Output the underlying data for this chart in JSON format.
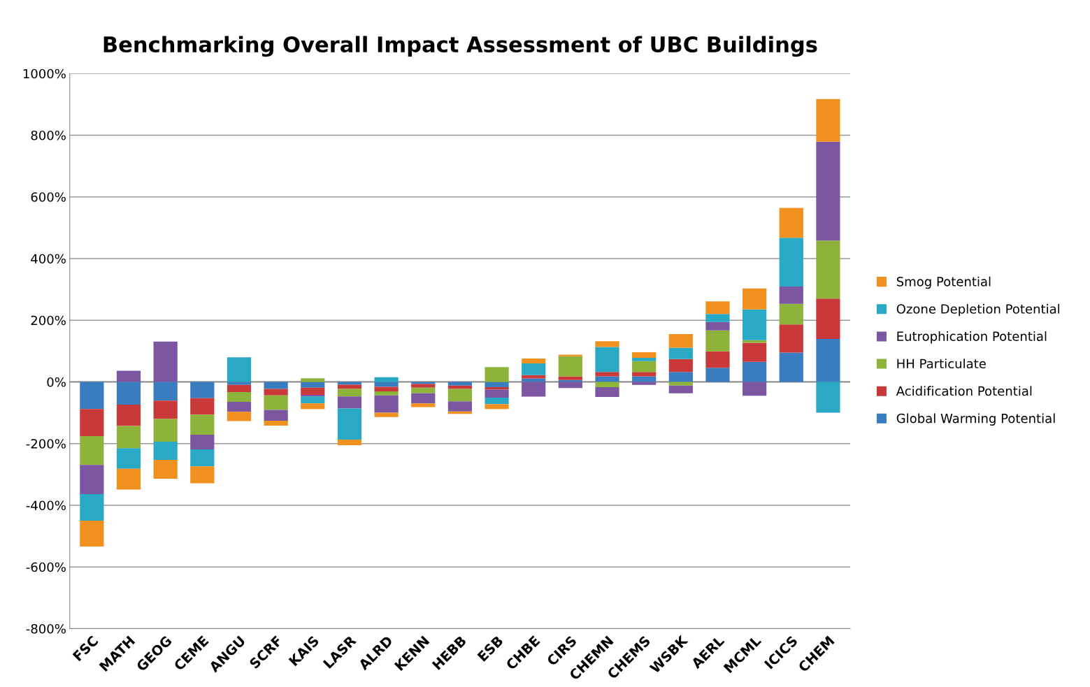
{
  "chart_data": {
    "type": "bar",
    "stacked": true,
    "title": "Benchmarking Overall Impact Assessment of UBC Buildings",
    "categories": [
      "FSC",
      "MATH",
      "GEOG",
      "CEME",
      "ANGU",
      "SCRF",
      "KAIS",
      "LASR",
      "ALRD",
      "KENN",
      "HEBB",
      "ESB",
      "CHBE",
      "CIRS",
      "CHEMN",
      "CHEMS",
      "WSBK",
      "AERL",
      "MCML",
      "ICICS",
      "CHEM"
    ],
    "series": [
      {
        "name": "Global Warming Potential",
        "color": "#3a7cc0",
        "values": [
          -88,
          -74,
          -61,
          -53,
          -10,
          -23,
          -19,
          -9,
          -16,
          -7,
          -12,
          -17,
          11,
          6,
          18,
          18,
          32,
          46,
          65,
          95,
          139
        ]
      },
      {
        "name": "Acidification Potential",
        "color": "#c9393a",
        "values": [
          -88,
          -69,
          -59,
          -53,
          -23,
          -21,
          -23,
          -14,
          -15,
          -12,
          -11,
          -8,
          11,
          12,
          14,
          14,
          42,
          53,
          62,
          91,
          131
        ]
      },
      {
        "name": "HH Particulate",
        "color": "#8db33b",
        "values": [
          -93,
          -72,
          -74,
          -65,
          -32,
          -47,
          12,
          -24,
          -13,
          -18,
          -40,
          48,
          0,
          65,
          -17,
          35,
          -12,
          68,
          8,
          67,
          188
        ]
      },
      {
        "name": "Eutrophication Potential",
        "color": "#7b57a2",
        "values": [
          -95,
          36,
          131,
          -48,
          -32,
          -35,
          -5,
          -39,
          -56,
          -33,
          -33,
          -26,
          -48,
          -20,
          -32,
          -10,
          -25,
          27,
          -45,
          56,
          321
        ]
      },
      {
        "name": "Ozone Depletion Potential",
        "color": "#2aa9c6",
        "values": [
          -86,
          -67,
          -59,
          -55,
          80,
          0,
          -23,
          -101,
          15,
          0,
          0,
          -21,
          38,
          0,
          81,
          11,
          37,
          26,
          100,
          158,
          -100
        ]
      },
      {
        "name": "Smog Potential",
        "color": "#f0901e",
        "values": [
          -84,
          -67,
          -61,
          -55,
          -30,
          -16,
          -18,
          -18,
          -14,
          -12,
          -8,
          -16,
          16,
          5,
          19,
          18,
          44,
          41,
          68,
          97,
          138
        ]
      }
    ],
    "ylim": [
      -800,
      1000
    ],
    "yticks": [
      {
        "value": -800,
        "label": "-800%"
      },
      {
        "value": -600,
        "label": "-600%"
      },
      {
        "value": -400,
        "label": "-400%"
      },
      {
        "value": -200,
        "label": "-200%"
      },
      {
        "value": 0,
        "label": "0%"
      },
      {
        "value": 200,
        "label": "200%"
      },
      {
        "value": 400,
        "label": "400%"
      },
      {
        "value": 600,
        "label": "600%"
      },
      {
        "value": 800,
        "label": "800%"
      },
      {
        "value": 1000,
        "label": "1000%"
      }
    ],
    "grid": "y",
    "legend": "right"
  }
}
